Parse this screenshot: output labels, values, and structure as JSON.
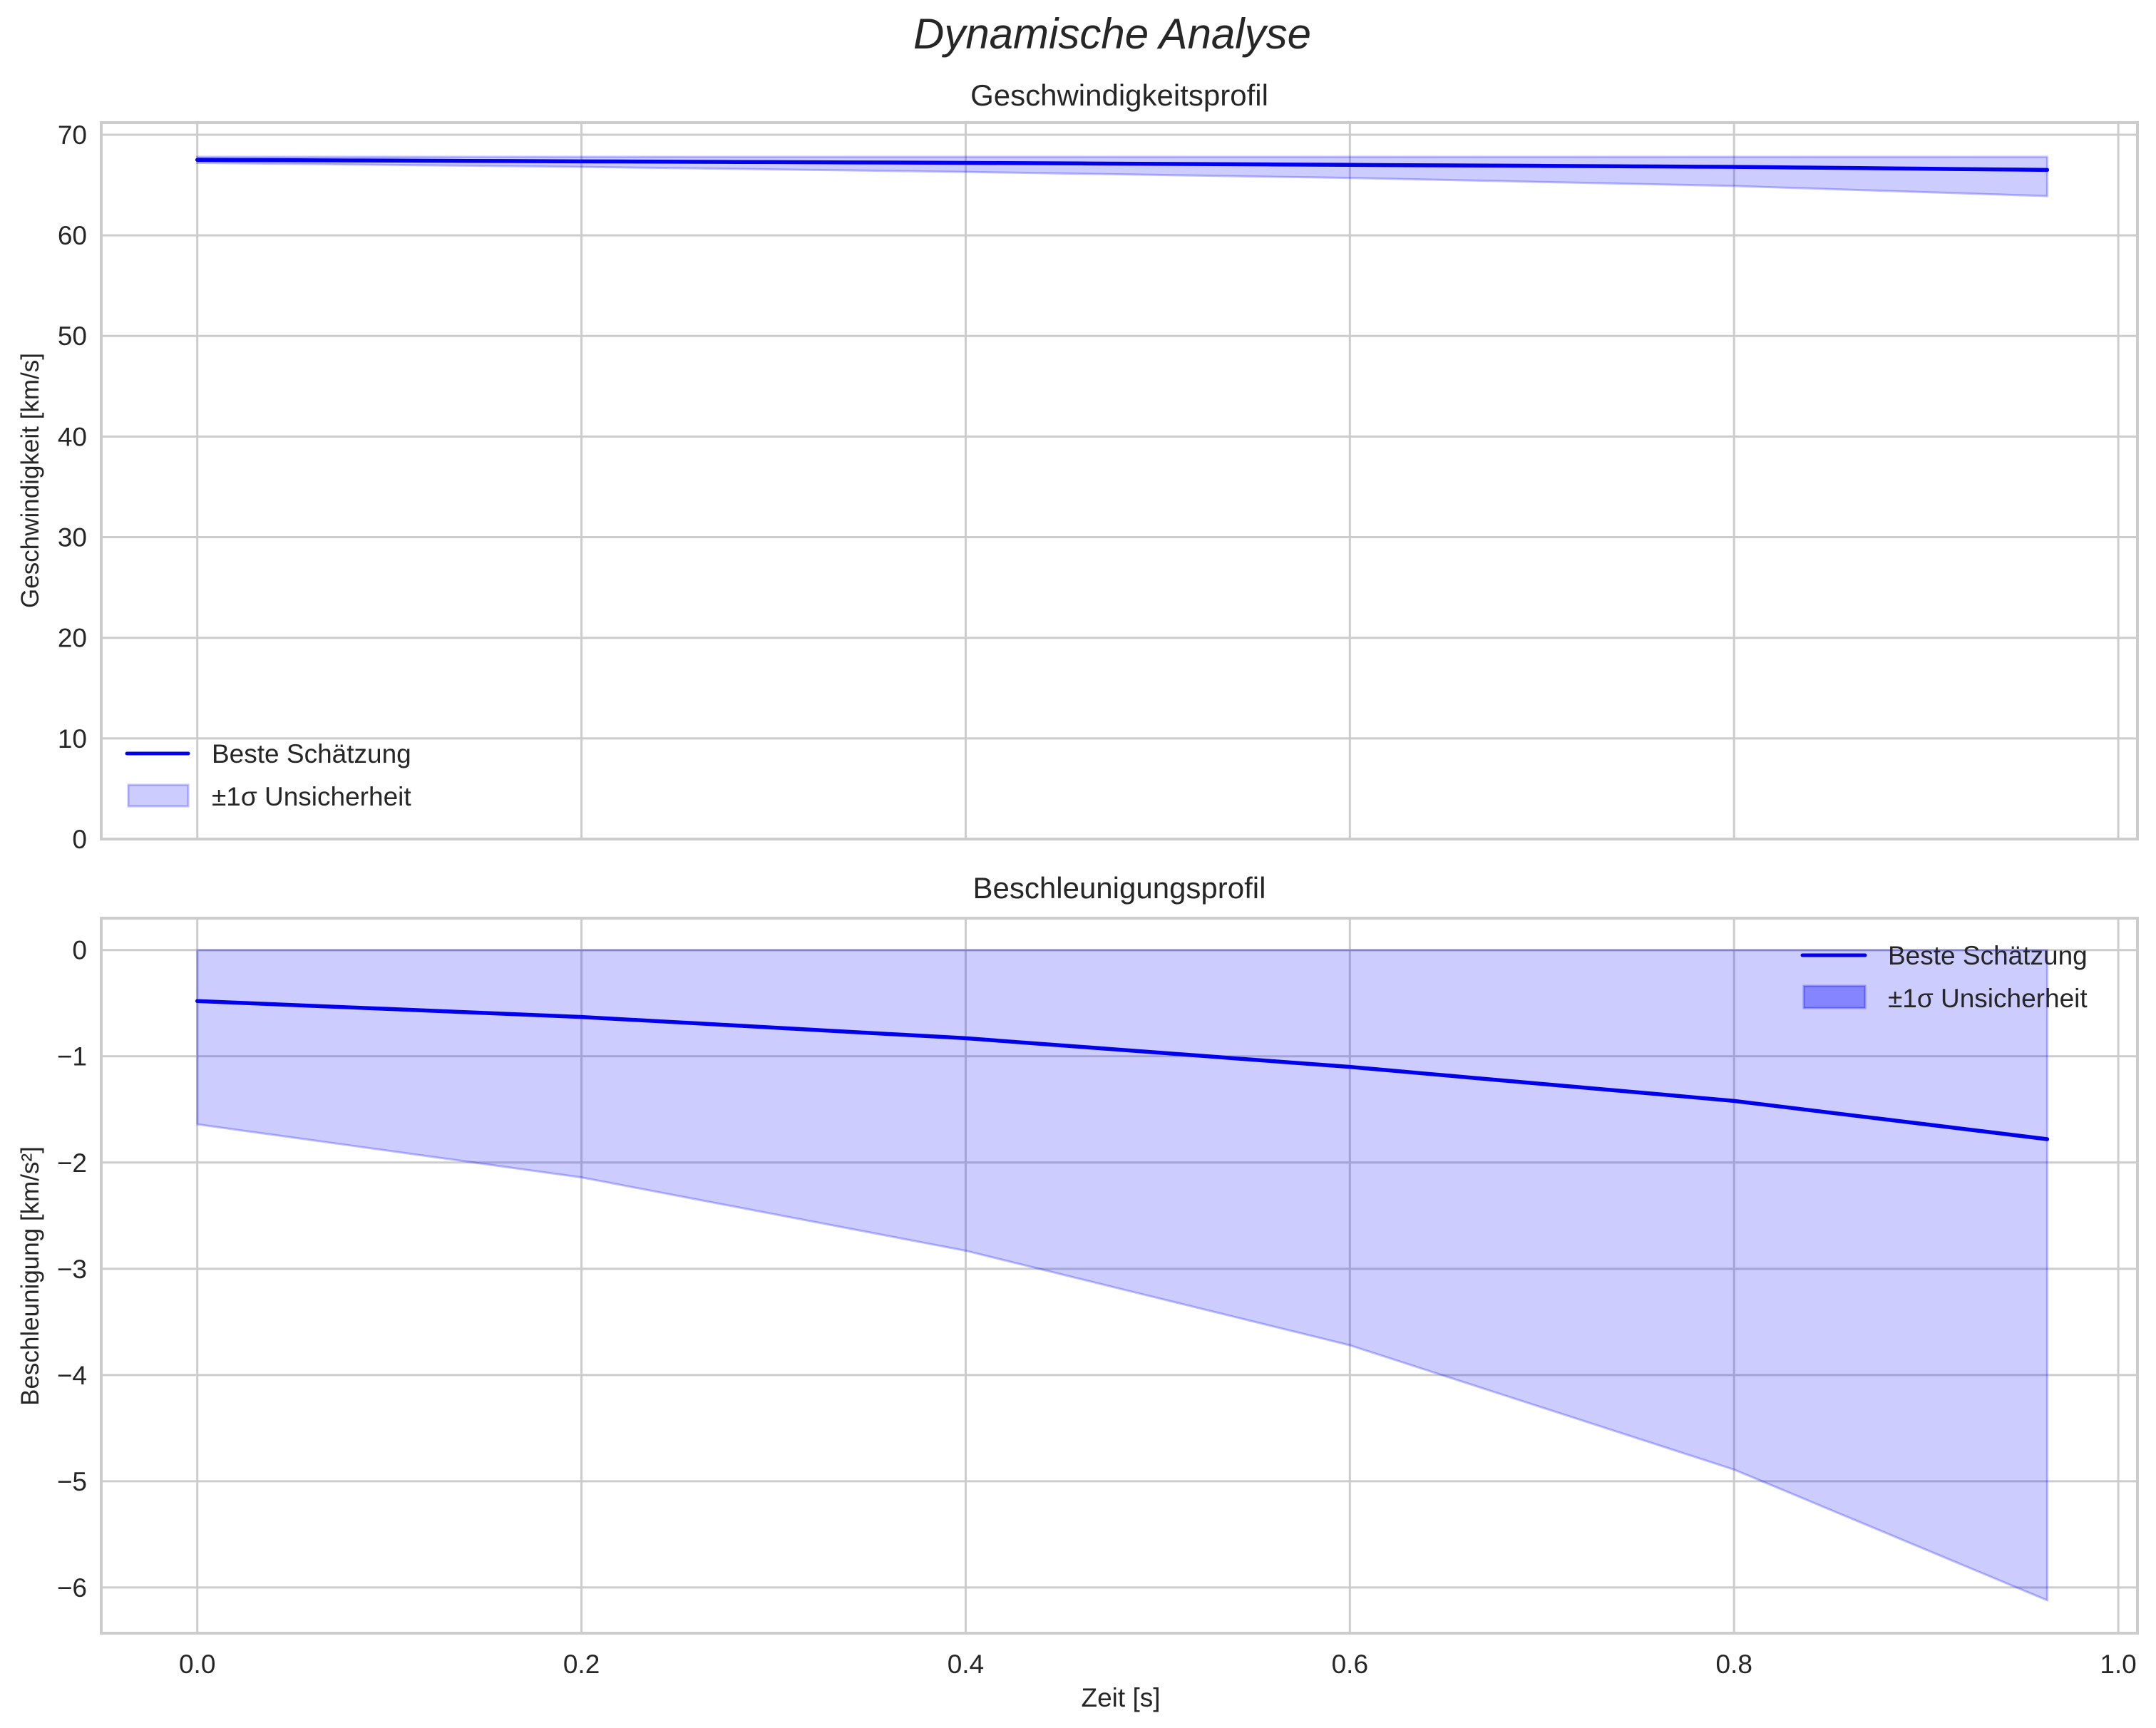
{
  "figure": {
    "suptitle": "Dynamische Analyse",
    "xlabel": "Zeit [s]",
    "colors": {
      "line": "#0000ee",
      "band_fill": "#0000ff",
      "band_alpha": 0.2,
      "grid": "#cccccc",
      "text": "#262626"
    }
  },
  "chart_data": [
    {
      "type": "line",
      "title": "Geschwindigkeitsprofil",
      "xlabel": "",
      "ylabel": "Geschwindigkeit [km/s]",
      "xlim": [
        -0.05,
        1.01
      ],
      "ylim": [
        0,
        71.2
      ],
      "xticks": [
        0.0,
        0.2,
        0.4,
        0.6,
        0.8,
        1.0
      ],
      "xtick_labels": [
        "",
        "",
        "",
        "",
        "",
        ""
      ],
      "yticks": [
        0,
        10,
        20,
        30,
        40,
        50,
        60,
        70
      ],
      "ytick_labels": [
        "0",
        "10",
        "20",
        "30",
        "40",
        "50",
        "60",
        "70"
      ],
      "grid": true,
      "legend": {
        "position": "lower left",
        "entries": [
          {
            "label": "Beste Schätzung",
            "kind": "line"
          },
          {
            "label": "±1σ Unsicherheit",
            "kind": "patch"
          }
        ]
      },
      "x": [
        0.0,
        0.2,
        0.4,
        0.6,
        0.8,
        0.963
      ],
      "series": [
        {
          "name": "Beste Schätzung",
          "values": [
            67.5,
            67.35,
            67.2,
            67.0,
            66.8,
            66.5
          ]
        },
        {
          "name": "±1σ Unsicherheit (upper)",
          "values": [
            67.8,
            67.8,
            67.8,
            67.8,
            67.8,
            67.8
          ]
        },
        {
          "name": "±1σ Unsicherheit (lower)",
          "values": [
            67.2,
            66.8,
            66.3,
            65.7,
            64.9,
            63.9
          ]
        }
      ]
    },
    {
      "type": "line",
      "title": "Beschleunigungsprofil",
      "xlabel": "Zeit [s]",
      "ylabel": "Beschleunigung [km/s²]",
      "xlim": [
        -0.05,
        1.01
      ],
      "ylim": [
        -6.43,
        0.3
      ],
      "xticks": [
        0.0,
        0.2,
        0.4,
        0.6,
        0.8,
        1.0
      ],
      "xtick_labels": [
        "0.0",
        "0.2",
        "0.4",
        "0.6",
        "0.8",
        "1.0"
      ],
      "yticks": [
        0,
        -1,
        -2,
        -3,
        -4,
        -5,
        -6
      ],
      "ytick_labels": [
        "0",
        "−1",
        "−2",
        "−3",
        "−4",
        "−5",
        "−6"
      ],
      "grid": true,
      "legend": {
        "position": "upper right",
        "entries": [
          {
            "label": "Beste Schätzung",
            "kind": "line"
          },
          {
            "label": "±1σ Unsicherheit",
            "kind": "patch"
          }
        ]
      },
      "x": [
        0.0,
        0.2,
        0.4,
        0.6,
        0.8,
        0.963
      ],
      "series": [
        {
          "name": "Beste Schätzung",
          "values": [
            -0.48,
            -0.63,
            -0.83,
            -1.1,
            -1.42,
            -1.78
          ]
        },
        {
          "name": "±1σ Unsicherheit (upper)",
          "values": [
            0.0,
            0.0,
            0.0,
            0.0,
            0.0,
            0.0
          ]
        },
        {
          "name": "±1σ Unsicherheit (lower)",
          "values": [
            -1.64,
            -2.14,
            -2.83,
            -3.72,
            -4.89,
            -6.12
          ]
        }
      ]
    }
  ]
}
